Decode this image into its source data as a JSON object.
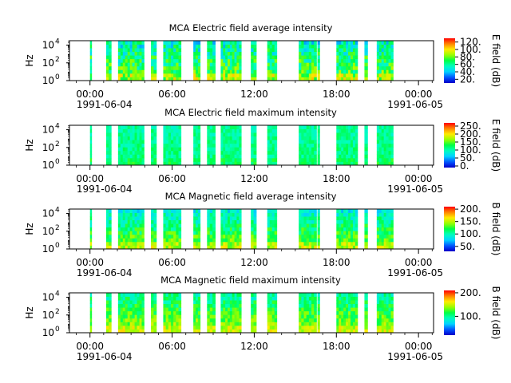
{
  "chart_data": [
    {
      "type": "heatmap",
      "title": "MCA  Electric field average intensity",
      "ylabel": "Hz",
      "colorbar_label": "E field (dB)",
      "colorbar_ticks": [
        "20.",
        "40.",
        "60.",
        "80.",
        "100.",
        "120."
      ],
      "clim": [
        10,
        130
      ],
      "yticks": [
        {
          "base": "10",
          "exp": "0"
        },
        {
          "base": "10",
          "exp": "2"
        },
        {
          "base": "10",
          "exp": "4"
        }
      ],
      "ylim_log10": [
        0,
        4.5
      ],
      "mean_level": 65,
      "vertical_gradient": -25
    },
    {
      "type": "heatmap",
      "title": "MCA  Electric field maximum intensity",
      "ylabel": "Hz",
      "colorbar_label": "E field (dB)",
      "colorbar_ticks": [
        "0.",
        "50.",
        "100.",
        "150.",
        "200.",
        "250."
      ],
      "clim": [
        -10,
        270
      ],
      "yticks": [
        {
          "base": "10",
          "exp": "0"
        },
        {
          "base": "10",
          "exp": "2"
        },
        {
          "base": "10",
          "exp": "4"
        }
      ],
      "ylim_log10": [
        0,
        4.5
      ],
      "mean_level": 110,
      "vertical_gradient": -10
    },
    {
      "type": "heatmap",
      "title": "MCA  Magnetic field average intensity",
      "ylabel": "Hz",
      "colorbar_label": "B field (dB)",
      "colorbar_ticks": [
        "50.",
        "100.",
        "150.",
        "200."
      ],
      "clim": [
        30,
        210
      ],
      "yticks": [
        {
          "base": "10",
          "exp": "0"
        },
        {
          "base": "10",
          "exp": "2"
        },
        {
          "base": "10",
          "exp": "4"
        }
      ],
      "ylim_log10": [
        0,
        4.5
      ],
      "mean_level": 115,
      "vertical_gradient": -50
    },
    {
      "type": "heatmap",
      "title": "MCA  Magnetic field maximum intensity",
      "ylabel": "Hz",
      "colorbar_label": "B field (dB)",
      "colorbar_ticks": [
        "100.",
        "200."
      ],
      "clim": [
        20,
        210
      ],
      "yticks": [
        {
          "base": "10",
          "exp": "0"
        },
        {
          "base": "10",
          "exp": "2"
        },
        {
          "base": "10",
          "exp": "4"
        }
      ],
      "ylim_log10": [
        0,
        4.5
      ],
      "mean_level": 120,
      "vertical_gradient": -45
    }
  ],
  "time_axis": {
    "tick_labels": [
      "00:00",
      "06:00",
      "12:00",
      "18:00",
      "00:00"
    ],
    "tick_hours": [
      0,
      6,
      12,
      18,
      24
    ],
    "minor_tick_hours": [
      -1,
      1,
      2,
      3,
      4,
      5,
      7,
      8,
      9,
      10,
      11,
      13,
      14,
      15,
      16,
      17,
      19,
      20,
      21,
      22,
      23,
      25
    ],
    "date_start": "1991-06-04",
    "date_end": "1991-06-05",
    "xlim_hours": [
      -1.5,
      25.1
    ]
  },
  "data_segments_hours": [
    [
      0.0,
      0.12
    ],
    [
      1.18,
      1.55
    ],
    [
      2.05,
      3.95
    ],
    [
      4.45,
      4.85
    ],
    [
      5.35,
      6.65
    ],
    [
      7.55,
      8.05
    ],
    [
      8.55,
      9.15
    ],
    [
      9.55,
      11.05
    ],
    [
      11.75,
      12.15
    ],
    [
      12.95,
      13.65
    ],
    [
      15.25,
      16.55
    ],
    [
      16.62,
      16.78
    ],
    [
      18.0,
      19.55
    ],
    [
      20.05,
      20.28
    ],
    [
      20.95,
      22.15
    ]
  ]
}
